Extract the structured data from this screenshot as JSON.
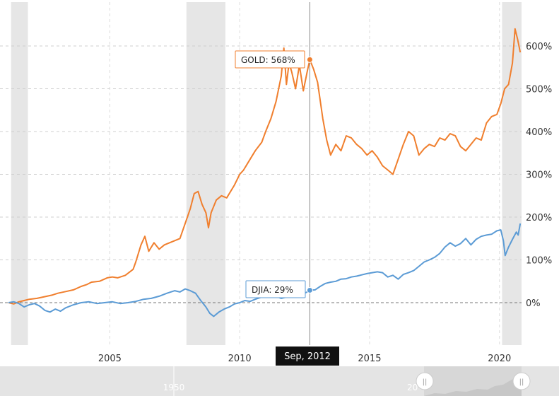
{
  "chart_data": {
    "type": "line",
    "title": "",
    "xlabel": "",
    "ylabel": "",
    "x_ticks": [
      "2005",
      "2010",
      "2015",
      "2020"
    ],
    "y_ticks": [
      "0%",
      "100%",
      "200%",
      "300%",
      "400%",
      "500%",
      "600%"
    ],
    "ylim": [
      -100,
      680
    ],
    "xlim": [
      2001.1,
      2020.85
    ],
    "grid": true,
    "recession_bands": [
      [
        2001.2,
        2001.85
      ],
      [
        2007.95,
        2009.45
      ],
      [
        2020.1,
        2020.85
      ]
    ],
    "crosshair": {
      "x": 2012.7,
      "label": "Sep, 2012"
    },
    "series": [
      {
        "name": "GOLD",
        "color": "#f07f2e",
        "tooltip": "GOLD: 568%",
        "points": [
          [
            2001.1,
            0
          ],
          [
            2001.3,
            -3
          ],
          [
            2001.5,
            2
          ],
          [
            2001.7,
            5
          ],
          [
            2001.9,
            8
          ],
          [
            2002.2,
            10
          ],
          [
            2002.5,
            14
          ],
          [
            2002.8,
            18
          ],
          [
            2003.0,
            22
          ],
          [
            2003.3,
            26
          ],
          [
            2003.6,
            30
          ],
          [
            2003.9,
            38
          ],
          [
            2004.1,
            42
          ],
          [
            2004.3,
            48
          ],
          [
            2004.6,
            50
          ],
          [
            2004.9,
            58
          ],
          [
            2005.1,
            60
          ],
          [
            2005.3,
            58
          ],
          [
            2005.6,
            64
          ],
          [
            2005.9,
            78
          ],
          [
            2006.0,
            95
          ],
          [
            2006.2,
            135
          ],
          [
            2006.35,
            155
          ],
          [
            2006.5,
            120
          ],
          [
            2006.7,
            140
          ],
          [
            2006.9,
            125
          ],
          [
            2007.1,
            135
          ],
          [
            2007.3,
            140
          ],
          [
            2007.5,
            145
          ],
          [
            2007.7,
            150
          ],
          [
            2007.9,
            185
          ],
          [
            2008.1,
            220
          ],
          [
            2008.25,
            255
          ],
          [
            2008.4,
            260
          ],
          [
            2008.55,
            230
          ],
          [
            2008.7,
            210
          ],
          [
            2008.8,
            175
          ],
          [
            2008.9,
            210
          ],
          [
            2009.1,
            240
          ],
          [
            2009.3,
            250
          ],
          [
            2009.5,
            245
          ],
          [
            2009.8,
            275
          ],
          [
            2010.0,
            300
          ],
          [
            2010.15,
            310
          ],
          [
            2010.35,
            330
          ],
          [
            2010.6,
            355
          ],
          [
            2010.85,
            375
          ],
          [
            2011.0,
            400
          ],
          [
            2011.2,
            430
          ],
          [
            2011.4,
            470
          ],
          [
            2011.6,
            530
          ],
          [
            2011.7,
            595
          ],
          [
            2011.8,
            510
          ],
          [
            2011.9,
            560
          ],
          [
            2012.0,
            540
          ],
          [
            2012.15,
            500
          ],
          [
            2012.3,
            555
          ],
          [
            2012.45,
            495
          ],
          [
            2012.6,
            540
          ],
          [
            2012.7,
            568
          ],
          [
            2012.85,
            545
          ],
          [
            2013.0,
            515
          ],
          [
            2013.2,
            430
          ],
          [
            2013.35,
            380
          ],
          [
            2013.5,
            345
          ],
          [
            2013.7,
            370
          ],
          [
            2013.9,
            355
          ],
          [
            2014.1,
            390
          ],
          [
            2014.3,
            385
          ],
          [
            2014.5,
            370
          ],
          [
            2014.7,
            360
          ],
          [
            2014.9,
            345
          ],
          [
            2015.1,
            355
          ],
          [
            2015.3,
            340
          ],
          [
            2015.5,
            320
          ],
          [
            2015.7,
            310
          ],
          [
            2015.9,
            300
          ],
          [
            2016.1,
            335
          ],
          [
            2016.3,
            370
          ],
          [
            2016.5,
            400
          ],
          [
            2016.7,
            390
          ],
          [
            2016.9,
            345
          ],
          [
            2017.1,
            360
          ],
          [
            2017.3,
            370
          ],
          [
            2017.5,
            365
          ],
          [
            2017.7,
            385
          ],
          [
            2017.9,
            380
          ],
          [
            2018.1,
            395
          ],
          [
            2018.3,
            390
          ],
          [
            2018.5,
            365
          ],
          [
            2018.7,
            355
          ],
          [
            2018.9,
            370
          ],
          [
            2019.1,
            385
          ],
          [
            2019.3,
            380
          ],
          [
            2019.5,
            420
          ],
          [
            2019.7,
            435
          ],
          [
            2019.9,
            440
          ],
          [
            2020.05,
            465
          ],
          [
            2020.2,
            500
          ],
          [
            2020.35,
            510
          ],
          [
            2020.5,
            560
          ],
          [
            2020.6,
            640
          ],
          [
            2020.7,
            615
          ],
          [
            2020.8,
            585
          ]
        ]
      },
      {
        "name": "DJIA",
        "color": "#5b9bd5",
        "tooltip": "DJIA: 29%",
        "points": [
          [
            2001.1,
            0
          ],
          [
            2001.3,
            2
          ],
          [
            2001.5,
            -2
          ],
          [
            2001.7,
            -10
          ],
          [
            2001.9,
            -5
          ],
          [
            2002.1,
            -2
          ],
          [
            2002.3,
            -8
          ],
          [
            2002.5,
            -18
          ],
          [
            2002.7,
            -22
          ],
          [
            2002.9,
            -15
          ],
          [
            2003.1,
            -20
          ],
          [
            2003.3,
            -12
          ],
          [
            2003.6,
            -5
          ],
          [
            2003.9,
            0
          ],
          [
            2004.2,
            2
          ],
          [
            2004.5,
            -2
          ],
          [
            2004.8,
            0
          ],
          [
            2005.1,
            2
          ],
          [
            2005.4,
            -2
          ],
          [
            2005.7,
            0
          ],
          [
            2006.0,
            3
          ],
          [
            2006.3,
            8
          ],
          [
            2006.6,
            10
          ],
          [
            2006.9,
            15
          ],
          [
            2007.2,
            22
          ],
          [
            2007.5,
            28
          ],
          [
            2007.7,
            25
          ],
          [
            2007.9,
            32
          ],
          [
            2008.1,
            28
          ],
          [
            2008.3,
            22
          ],
          [
            2008.5,
            5
          ],
          [
            2008.7,
            -10
          ],
          [
            2008.85,
            -25
          ],
          [
            2009.0,
            -32
          ],
          [
            2009.2,
            -22
          ],
          [
            2009.4,
            -15
          ],
          [
            2009.6,
            -10
          ],
          [
            2009.8,
            -3
          ],
          [
            2010.0,
            0
          ],
          [
            2010.2,
            5
          ],
          [
            2010.4,
            3
          ],
          [
            2010.6,
            8
          ],
          [
            2010.8,
            12
          ],
          [
            2011.0,
            18
          ],
          [
            2011.2,
            20
          ],
          [
            2011.4,
            15
          ],
          [
            2011.6,
            10
          ],
          [
            2011.8,
            13
          ],
          [
            2012.0,
            18
          ],
          [
            2012.2,
            22
          ],
          [
            2012.4,
            20
          ],
          [
            2012.6,
            25
          ],
          [
            2012.7,
            29
          ],
          [
            2012.9,
            30
          ],
          [
            2013.1,
            38
          ],
          [
            2013.3,
            45
          ],
          [
            2013.5,
            48
          ],
          [
            2013.7,
            50
          ],
          [
            2013.9,
            55
          ],
          [
            2014.1,
            56
          ],
          [
            2014.3,
            60
          ],
          [
            2014.5,
            62
          ],
          [
            2014.7,
            65
          ],
          [
            2014.9,
            68
          ],
          [
            2015.1,
            70
          ],
          [
            2015.3,
            72
          ],
          [
            2015.5,
            70
          ],
          [
            2015.7,
            60
          ],
          [
            2015.9,
            64
          ],
          [
            2016.1,
            55
          ],
          [
            2016.3,
            66
          ],
          [
            2016.5,
            70
          ],
          [
            2016.7,
            75
          ],
          [
            2016.9,
            85
          ],
          [
            2017.1,
            95
          ],
          [
            2017.3,
            100
          ],
          [
            2017.5,
            106
          ],
          [
            2017.7,
            115
          ],
          [
            2017.9,
            130
          ],
          [
            2018.1,
            140
          ],
          [
            2018.3,
            132
          ],
          [
            2018.5,
            138
          ],
          [
            2018.7,
            150
          ],
          [
            2018.9,
            135
          ],
          [
            2019.1,
            148
          ],
          [
            2019.3,
            155
          ],
          [
            2019.5,
            158
          ],
          [
            2019.7,
            160
          ],
          [
            2019.9,
            168
          ],
          [
            2020.05,
            170
          ],
          [
            2020.15,
            145
          ],
          [
            2020.22,
            110
          ],
          [
            2020.35,
            130
          ],
          [
            2020.5,
            148
          ],
          [
            2020.65,
            165
          ],
          [
            2020.72,
            158
          ],
          [
            2020.8,
            185
          ]
        ]
      }
    ]
  },
  "navigator": {
    "label": "1950",
    "partial_label": "20",
    "handle_glyph": "||"
  }
}
